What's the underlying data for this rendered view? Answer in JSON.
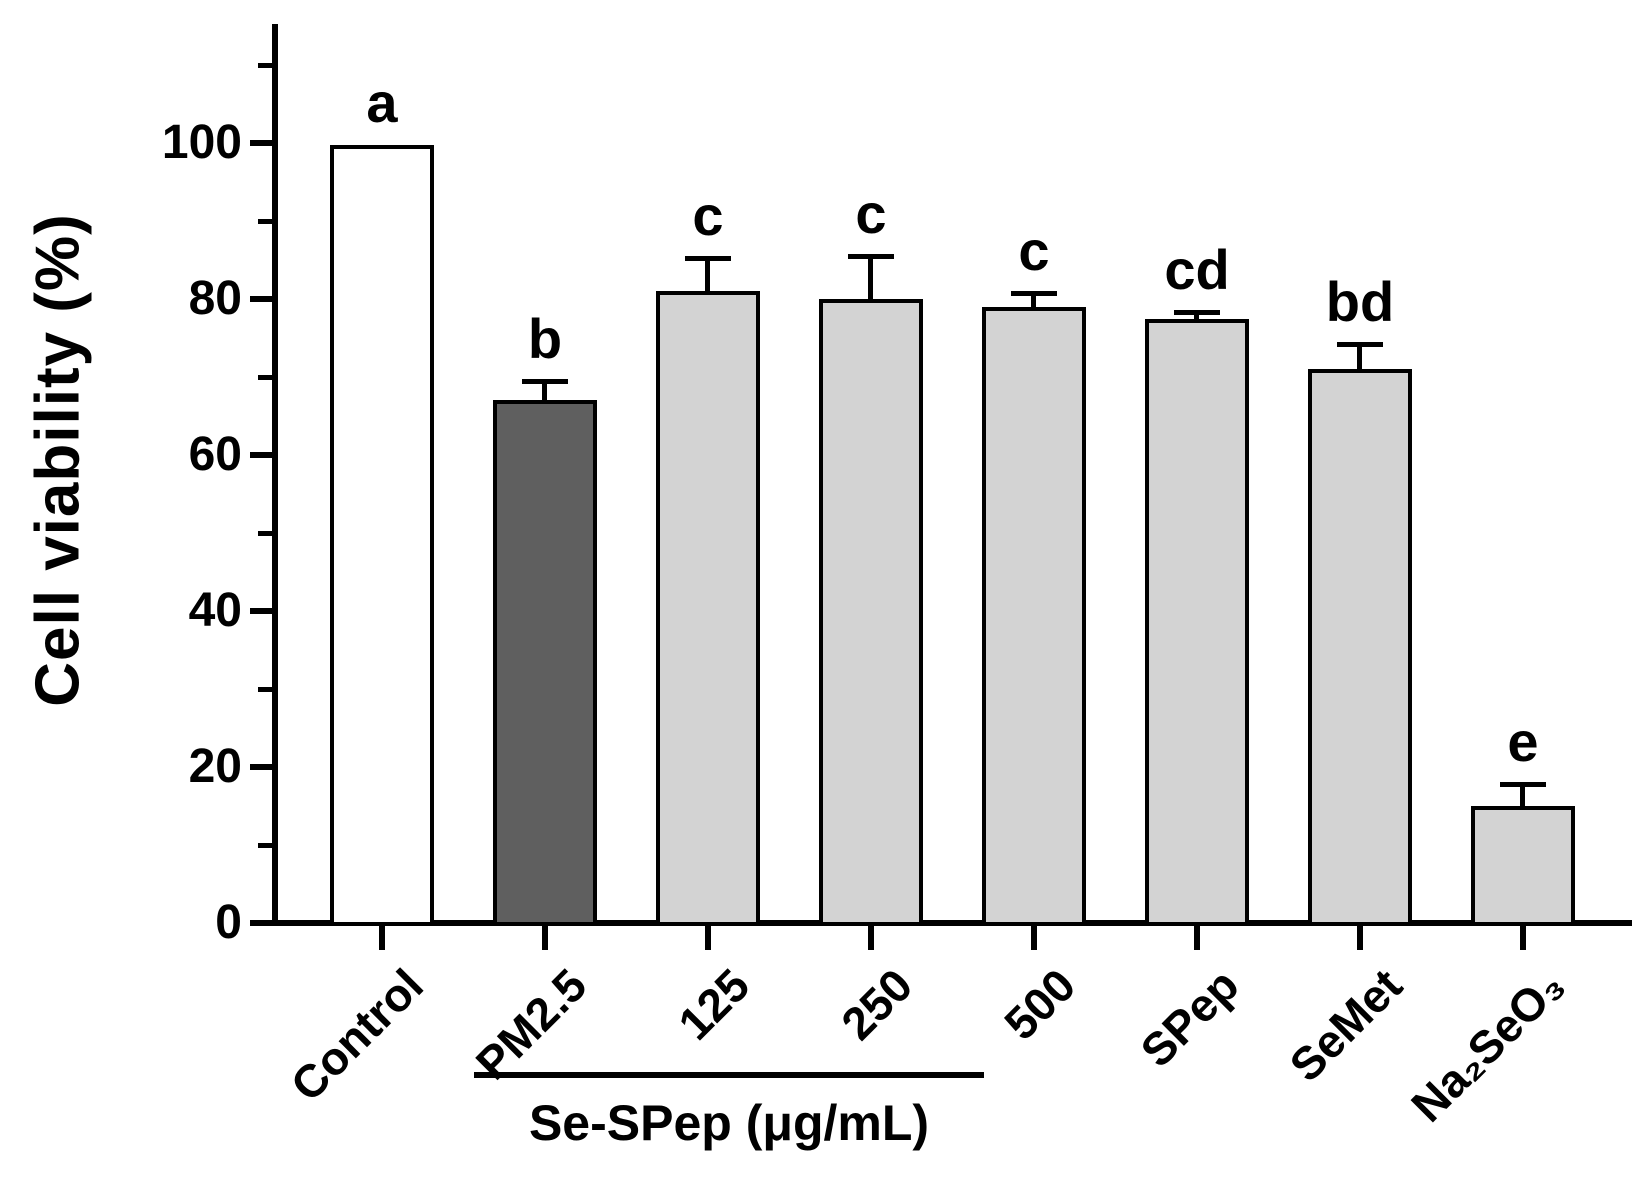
{
  "figure": {
    "background": "#ffffff",
    "text_color": "#000000"
  },
  "chart_data": {
    "type": "bar",
    "title": "",
    "xlabel": "",
    "ylabel": "Cell viability (%)",
    "ylim": [
      0,
      115
    ],
    "yticks_major": [
      0,
      20,
      40,
      60,
      80,
      100
    ],
    "yticks_minor": [
      10,
      30,
      50,
      70,
      90,
      110
    ],
    "grid": "off",
    "legend": "none",
    "categories": [
      "Control",
      "PM2.5",
      "125",
      "250",
      "500",
      "SPep",
      "SeMet",
      "Na₂SeO₃"
    ],
    "series": [
      {
        "name": "Cell viability (%)",
        "values": [
          99.8,
          67,
          81,
          80,
          79,
          77.5,
          71,
          15
        ],
        "errors_plus": [
          0,
          2.5,
          4.3,
          5.5,
          1.8,
          0.8,
          3.2,
          2.8
        ],
        "significance_letters": [
          "a",
          "b",
          "c",
          "c",
          "c",
          "cd",
          "bd",
          "e"
        ],
        "bar_fills": [
          "#ffffff",
          "#5f5f5f",
          "#d3d3d3",
          "#d3d3d3",
          "#d3d3d3",
          "#d3d3d3",
          "#d3d3d3",
          "#d3d3d3"
        ],
        "bar_border_color": "#000000",
        "error_bar_color": "#000000"
      }
    ],
    "group_annotation": {
      "label": "Se-SPep (μg/mL)",
      "categories": [
        "125",
        "250",
        "500"
      ]
    },
    "colors": {
      "axis": "#000000",
      "bar_light": "#d3d3d3",
      "bar_dark": "#5f5f5f",
      "bar_white": "#ffffff"
    }
  }
}
